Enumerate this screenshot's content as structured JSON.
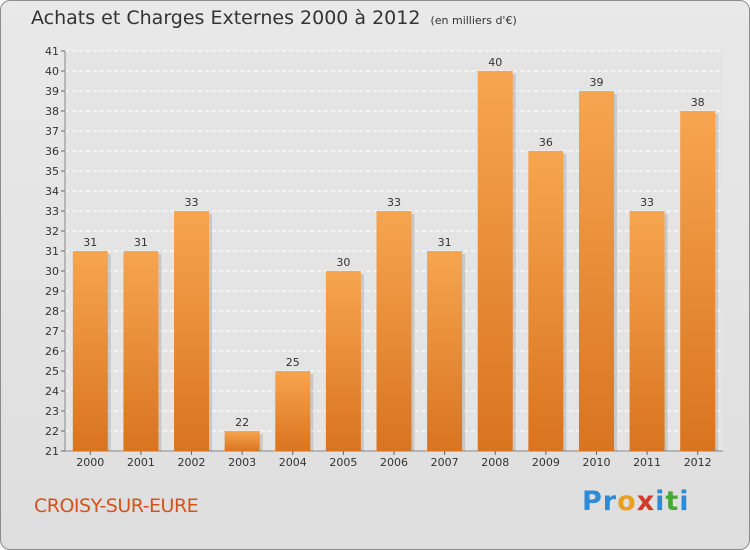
{
  "header": {
    "title": "Achats et Charges Externes 2000 à 2012",
    "unit": "(en milliers d'€)"
  },
  "footer": {
    "city": "CROISY-SUR-EURE",
    "logo_letters": [
      "P",
      "r",
      "o",
      "x",
      "i",
      "t",
      "i"
    ],
    "logo_colors": [
      "#2e8bd6",
      "#2e8bd6",
      "#e8a020",
      "#d43a2a",
      "#2e8bd6",
      "#4aa83a",
      "#2e8bd6"
    ]
  },
  "colors": {
    "bar_light": "#f7a550",
    "bar_dark": "#d9741f",
    "grid": "#ffffff",
    "axis_text": "#333333"
  },
  "chart_data": {
    "type": "bar",
    "categories": [
      "2000",
      "2001",
      "2002",
      "2003",
      "2004",
      "2005",
      "2006",
      "2007",
      "2008",
      "2009",
      "2010",
      "2011",
      "2012"
    ],
    "values": [
      31,
      31,
      33,
      22,
      25,
      30,
      33,
      31,
      40,
      36,
      39,
      33,
      38
    ],
    "ylim": [
      21,
      41
    ],
    "yticks": [
      21,
      22,
      23,
      24,
      25,
      26,
      27,
      28,
      29,
      30,
      31,
      32,
      33,
      34,
      35,
      36,
      37,
      38,
      39,
      40,
      41
    ],
    "grid": true,
    "xlabel": "",
    "ylabel": ""
  }
}
